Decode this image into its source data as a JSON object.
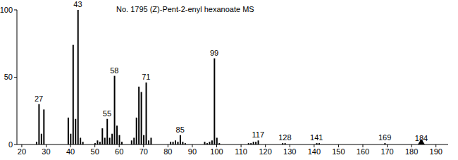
{
  "chart_data": {
    "type": "bar",
    "title": "No. 1795 (Z)-Pent-2-enyl hexanoate MS",
    "x": [
      26,
      27,
      28,
      29,
      39,
      40,
      41,
      42,
      43,
      44,
      45,
      50,
      51,
      52,
      53,
      54,
      55,
      56,
      57,
      58,
      59,
      60,
      61,
      65,
      66,
      67,
      68,
      69,
      70,
      71,
      72,
      73,
      81,
      82,
      83,
      84,
      85,
      86,
      87,
      95,
      96,
      97,
      98,
      99,
      100,
      101,
      113,
      114,
      115,
      116,
      117,
      127,
      128,
      141,
      142,
      169,
      184
    ],
    "values": [
      2,
      30,
      8,
      26,
      20,
      8,
      74,
      19,
      100,
      5,
      2,
      1,
      3,
      2,
      12,
      5,
      19,
      5,
      8,
      51,
      14,
      7,
      2,
      3,
      5,
      20,
      43,
      39,
      7,
      46,
      3,
      5,
      2,
      2,
      3,
      2,
      7,
      2,
      1,
      2,
      1,
      2,
      3,
      64,
      5,
      1,
      1,
      1,
      2,
      2,
      3,
      1,
      1,
      1,
      1,
      1,
      0.3
    ],
    "color": "#000000",
    "xlim": [
      18,
      195
    ],
    "xticks": [
      20,
      30,
      40,
      50,
      60,
      70,
      80,
      90,
      100,
      110,
      120,
      130,
      140,
      150,
      160,
      170,
      180,
      190
    ],
    "ylim": [
      0,
      100
    ],
    "yticks": [
      0,
      50,
      100
    ],
    "grid": false,
    "marker": "triangle",
    "annotations": [
      {
        "text": "27",
        "x": 27,
        "y": 30
      },
      {
        "text": "43",
        "x": 43,
        "y": 100
      },
      {
        "text": "55",
        "x": 55,
        "y": 19
      },
      {
        "text": "58",
        "x": 58,
        "y": 51
      },
      {
        "text": "71",
        "x": 71,
        "y": 46
      },
      {
        "text": "85",
        "x": 85,
        "y": 7
      },
      {
        "text": "99",
        "x": 99,
        "y": 64
      },
      {
        "text": "117",
        "x": 117,
        "y": 3
      },
      {
        "text": "128",
        "x": 128,
        "y": 1
      },
      {
        "text": "141",
        "x": 141,
        "y": 1
      },
      {
        "text": "169",
        "x": 169,
        "y": 1
      },
      {
        "text": "184",
        "x": 184,
        "y": 0.3
      }
    ]
  }
}
